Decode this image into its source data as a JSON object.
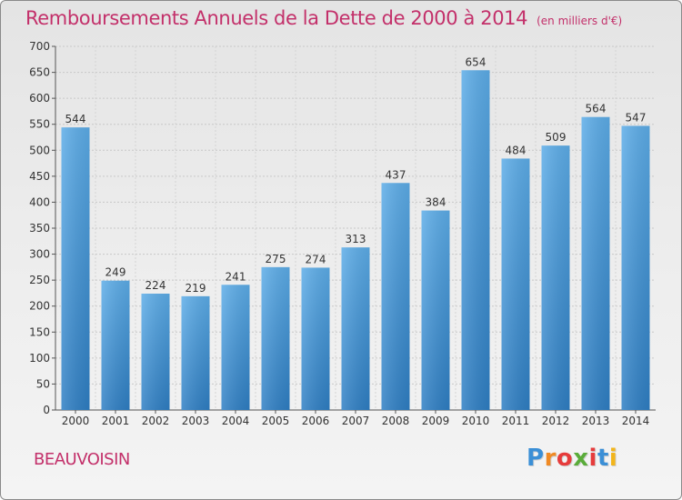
{
  "chart_data": {
    "type": "bar",
    "title": "Remboursements Annuels de la Dette de 2000 à 2014",
    "unit_label": "(en milliers d'€)",
    "categories": [
      "2000",
      "2001",
      "2002",
      "2003",
      "2004",
      "2005",
      "2006",
      "2007",
      "2008",
      "2009",
      "2010",
      "2011",
      "2012",
      "2013",
      "2014"
    ],
    "values": [
      544,
      249,
      224,
      219,
      241,
      275,
      274,
      313,
      437,
      384,
      654,
      484,
      509,
      564,
      547
    ],
    "ylim": [
      0,
      700
    ],
    "yticks": [
      0,
      50,
      100,
      150,
      200,
      250,
      300,
      350,
      400,
      450,
      500,
      550,
      600,
      650,
      700
    ],
    "xlabel": "",
    "ylabel": "",
    "grid": true,
    "bar_color": "#4e9fdd"
  },
  "commune": "BEAUVOISIN",
  "logo": {
    "letters": [
      "P",
      "r",
      "o",
      "x",
      "i",
      "t",
      "i"
    ],
    "colors": [
      "#3b8fd6",
      "#f08a24",
      "#e63c3c",
      "#5aac3a",
      "#e63c3c",
      "#3b8fd6",
      "#f2b51c"
    ]
  }
}
